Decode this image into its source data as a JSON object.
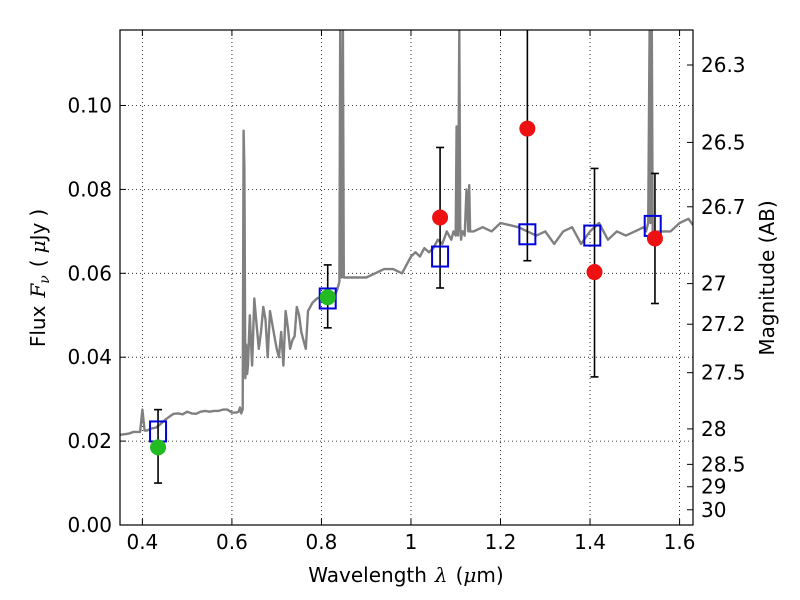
{
  "chart_data": {
    "type": "scatter",
    "xlabel": "Wavelength",
    "xlabel_symbol": "λ",
    "xlabel_unit": "(μm)",
    "xlabel_unit_open": "(",
    "xlabel_unit_mu": "μ",
    "xlabel_unit_rest": "m)",
    "ylabel": "Flux",
    "ylabel_symbol": "F",
    "ylabel_subscript": "ν",
    "ylabel_unit": "( μJy )",
    "ylabel_unit_open": "(",
    "ylabel_unit_mu": "μ",
    "ylabel_unit_rest": "Jy",
    "ylabel_unit_close": ")",
    "y2label": "Magnitude (AB)",
    "xlim": [
      0.35,
      1.63
    ],
    "ylim": [
      0.0,
      0.118
    ],
    "grid": true,
    "x_ticks": [
      {
        "value": 0.4,
        "label": "0.4"
      },
      {
        "value": 0.6,
        "label": "0.6"
      },
      {
        "value": 0.8,
        "label": "0.8"
      },
      {
        "value": 1.0,
        "label": "1"
      },
      {
        "value": 1.2,
        "label": "1.2"
      },
      {
        "value": 1.4,
        "label": "1.4"
      },
      {
        "value": 1.6,
        "label": "1.6"
      }
    ],
    "y_ticks": [
      {
        "value": 0.0,
        "label": "0.00"
      },
      {
        "value": 0.02,
        "label": "0.02"
      },
      {
        "value": 0.04,
        "label": "0.04"
      },
      {
        "value": 0.06,
        "label": "0.06"
      },
      {
        "value": 0.08,
        "label": "0.08"
      },
      {
        "value": 0.1,
        "label": "0.10"
      }
    ],
    "magnitude_ticks": [
      {
        "value": 26.3,
        "label": "26.3"
      },
      {
        "value": 26.5,
        "label": "26.5"
      },
      {
        "value": 26.7,
        "label": "26.7"
      },
      {
        "value": 27.0,
        "label": "27"
      },
      {
        "value": 27.2,
        "label": "27.2"
      },
      {
        "value": 27.5,
        "label": "27.5"
      },
      {
        "value": 28.0,
        "label": "28"
      },
      {
        "value": 28.5,
        "label": "28.5"
      },
      {
        "value": 29.0,
        "label": "29"
      },
      {
        "value": 30.0,
        "label": "30"
      }
    ],
    "observed_points": [
      {
        "x": 0.435,
        "y": 0.0185,
        "err_low": 0.0085,
        "err_high": 0.009,
        "color": "#22bb22"
      },
      {
        "x": 0.814,
        "y": 0.0543,
        "err_low": 0.0073,
        "err_high": 0.0077,
        "color": "#22bb22"
      },
      {
        "x": 1.065,
        "y": 0.0733,
        "err_low": 0.0168,
        "err_high": 0.0167,
        "color": "#ee1111"
      },
      {
        "x": 1.26,
        "y": 0.0945,
        "err_low": 0.0315,
        "err_high": 0.0255,
        "color": "#ee1111"
      },
      {
        "x": 1.41,
        "y": 0.0603,
        "err_low": 0.025,
        "err_high": 0.0247,
        "color": "#ee1111"
      },
      {
        "x": 1.545,
        "y": 0.0683,
        "err_low": 0.0155,
        "err_high": 0.0155,
        "color": "#ee1111"
      }
    ],
    "model_points": [
      {
        "x": 0.435,
        "y": 0.0223
      },
      {
        "x": 0.814,
        "y": 0.054
      },
      {
        "x": 1.065,
        "y": 0.064
      },
      {
        "x": 1.26,
        "y": 0.0693
      },
      {
        "x": 1.405,
        "y": 0.069
      },
      {
        "x": 1.54,
        "y": 0.0713
      }
    ],
    "model_spectrum": {
      "color": "#808080",
      "x": [
        0.35,
        0.37,
        0.38,
        0.395,
        0.4,
        0.405,
        0.41,
        0.42,
        0.43,
        0.44,
        0.45,
        0.46,
        0.47,
        0.48,
        0.49,
        0.5,
        0.51,
        0.52,
        0.53,
        0.54,
        0.55,
        0.56,
        0.57,
        0.58,
        0.59,
        0.6,
        0.61,
        0.615,
        0.618,
        0.621,
        0.624,
        0.626,
        0.628,
        0.63,
        0.632,
        0.634,
        0.636,
        0.64,
        0.645,
        0.65,
        0.655,
        0.66,
        0.665,
        0.67,
        0.675,
        0.68,
        0.685,
        0.69,
        0.695,
        0.7,
        0.705,
        0.71,
        0.715,
        0.72,
        0.725,
        0.73,
        0.735,
        0.74,
        0.745,
        0.75,
        0.755,
        0.76,
        0.765,
        0.77,
        0.78,
        0.79,
        0.8,
        0.81,
        0.82,
        0.83,
        0.835,
        0.84,
        0.842,
        0.845,
        0.848,
        0.85,
        0.852,
        0.86,
        0.88,
        0.9,
        0.92,
        0.94,
        0.96,
        0.98,
        1.0,
        1.01,
        1.02,
        1.03,
        1.04,
        1.05,
        1.06,
        1.07,
        1.08,
        1.09,
        1.095,
        1.1,
        1.102,
        1.105,
        1.108,
        1.11,
        1.112,
        1.114,
        1.116,
        1.12,
        1.124,
        1.128,
        1.13,
        1.132,
        1.134,
        1.136,
        1.14,
        1.16,
        1.18,
        1.2,
        1.22,
        1.24,
        1.26,
        1.28,
        1.3,
        1.32,
        1.34,
        1.36,
        1.38,
        1.4,
        1.42,
        1.44,
        1.46,
        1.48,
        1.5,
        1.52,
        1.525,
        1.53,
        1.533,
        1.535,
        1.538,
        1.54,
        1.542,
        1.545,
        1.548,
        1.55,
        1.56,
        1.58,
        1.6,
        1.62,
        1.63
      ],
      "y": [
        0.0215,
        0.0218,
        0.0222,
        0.0222,
        0.0275,
        0.0225,
        0.0225,
        0.023,
        0.0232,
        0.024,
        0.025,
        0.0258,
        0.0265,
        0.0266,
        0.0264,
        0.027,
        0.0266,
        0.0265,
        0.027,
        0.0272,
        0.027,
        0.0272,
        0.0272,
        0.0275,
        0.0275,
        0.0268,
        0.0268,
        0.027,
        0.028,
        0.0266,
        0.0276,
        0.094,
        0.085,
        0.035,
        0.043,
        0.036,
        0.038,
        0.05,
        0.038,
        0.054,
        0.048,
        0.042,
        0.046,
        0.052,
        0.049,
        0.04,
        0.051,
        0.048,
        0.045,
        0.042,
        0.04,
        0.046,
        0.038,
        0.051,
        0.047,
        0.042,
        0.044,
        0.045,
        0.052,
        0.05,
        0.046,
        0.044,
        0.042,
        0.051,
        0.053,
        0.054,
        0.0545,
        0.0547,
        0.0548,
        0.055,
        0.056,
        0.058,
        0.118,
        0.059,
        0.118,
        0.059,
        0.059,
        0.059,
        0.059,
        0.059,
        0.06,
        0.061,
        0.061,
        0.06,
        0.064,
        0.065,
        0.064,
        0.066,
        0.065,
        0.066,
        0.068,
        0.067,
        0.07,
        0.068,
        0.07,
        0.069,
        0.095,
        0.069,
        0.118,
        0.071,
        0.068,
        0.07,
        0.07,
        0.069,
        0.08,
        0.07,
        0.081,
        0.07,
        0.07,
        0.07,
        0.07,
        0.071,
        0.07,
        0.072,
        0.0715,
        0.071,
        0.07,
        0.069,
        0.07,
        0.067,
        0.07,
        0.071,
        0.067,
        0.07,
        0.072,
        0.068,
        0.07,
        0.069,
        0.07,
        0.071,
        0.07,
        0.072,
        0.118,
        0.072,
        0.118,
        0.07,
        0.07,
        0.07,
        0.069,
        0.07,
        0.07,
        0.07,
        0.072,
        0.073,
        0.0715
      ]
    }
  }
}
